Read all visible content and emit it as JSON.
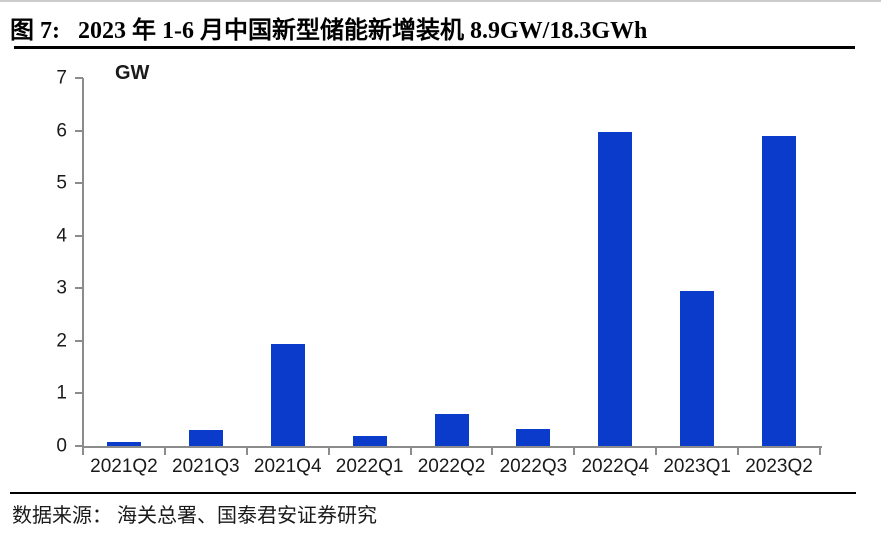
{
  "header": {
    "figure_label": "图 7:",
    "title": "2023 年 1-6 月中国新型储能新增装机 8.9GW/18.3GWh"
  },
  "footer": {
    "source_label": "数据来源：",
    "source_text": "海关总署、国泰君安证券研究"
  },
  "chart_data": {
    "type": "bar",
    "title": "2023 年 1-6 月中国新型储能新增装机 8.9GW/18.3GWh",
    "unit_label": "GW",
    "categories": [
      "2021Q2",
      "2021Q3",
      "2021Q4",
      "2022Q1",
      "2022Q2",
      "2022Q3",
      "2022Q4",
      "2023Q1",
      "2023Q2"
    ],
    "values": [
      0.08,
      0.3,
      1.95,
      0.2,
      0.6,
      0.33,
      5.97,
      2.95,
      5.9
    ],
    "xlabel": "",
    "ylabel": "GW",
    "ylim": [
      0,
      7
    ],
    "ytick_step": 1,
    "grid": false,
    "legend": null,
    "bar_color": "#0b3bcb",
    "axis_color": "#8c8c8c"
  }
}
